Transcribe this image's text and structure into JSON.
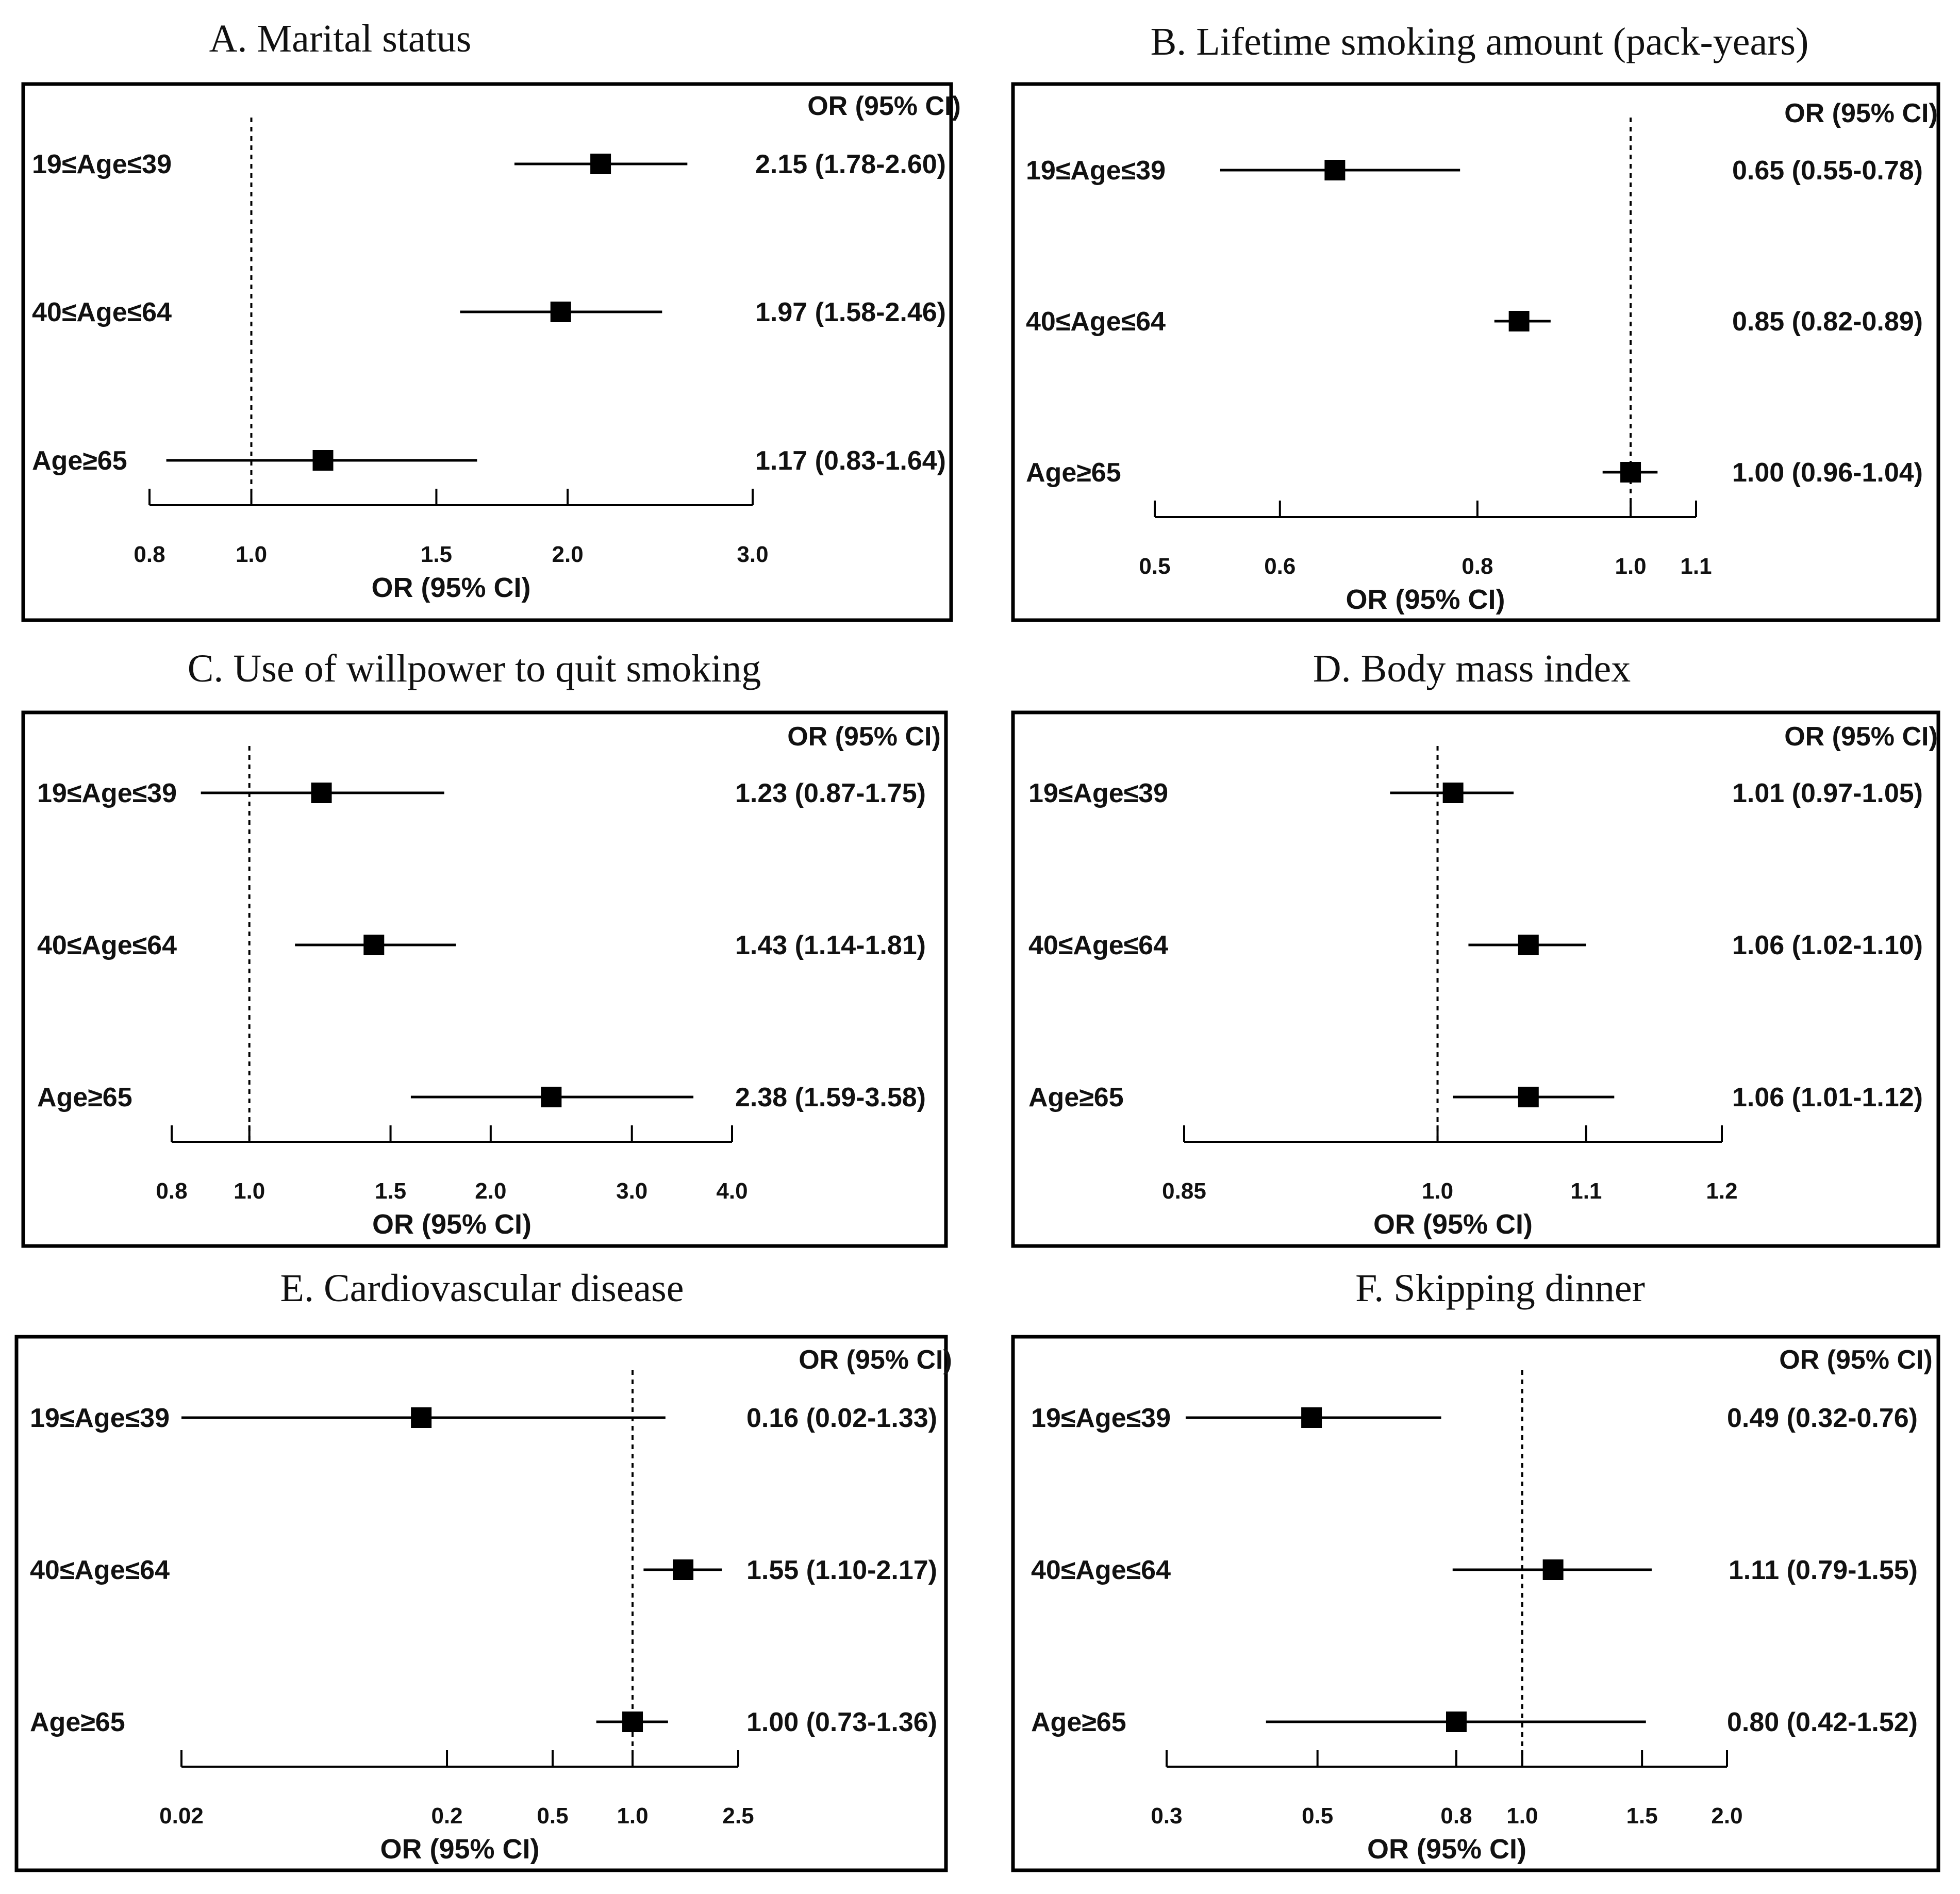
{
  "figure": {
    "ci_header": "OR (95% CI)",
    "axis_title": "OR (95% CI)"
  },
  "chart_data": [
    {
      "type": "forest",
      "title": "A. Marital status",
      "xlabel": "OR (95% CI)",
      "xscale": "log",
      "xlim": [
        0.8,
        3.0
      ],
      "ticks": [
        0.8,
        1.0,
        1.5,
        2.0,
        3.0
      ],
      "tick_labels": [
        "0.8",
        "1.0",
        "1.5",
        "2.0",
        "3.0"
      ],
      "reference": 1.0,
      "rows": [
        {
          "label": "19≤Age≤39",
          "or": 2.15,
          "lo": 1.78,
          "hi": 2.6,
          "text": "2.15 (1.78-2.60)"
        },
        {
          "label": "40≤Age≤64",
          "or": 1.97,
          "lo": 1.58,
          "hi": 2.46,
          "text": "1.97 (1.58-2.46)"
        },
        {
          "label": "Age≥65",
          "or": 1.17,
          "lo": 0.83,
          "hi": 1.64,
          "text": "1.17 (0.83-1.64)"
        }
      ]
    },
    {
      "type": "forest",
      "title": "B. Lifetime smoking amount (pack-years)",
      "xlabel": "OR (95% CI)",
      "xscale": "log",
      "xlim": [
        0.5,
        1.1
      ],
      "ticks": [
        0.5,
        0.6,
        0.8,
        1.0,
        1.1
      ],
      "tick_labels": [
        "0.5",
        "0.6",
        "0.8",
        "1.0",
        "1.1"
      ],
      "reference": 1.0,
      "rows": [
        {
          "label": "19≤Age≤39",
          "or": 0.65,
          "lo": 0.55,
          "hi": 0.78,
          "text": "0.65 (0.55-0.78)"
        },
        {
          "label": "40≤Age≤64",
          "or": 0.85,
          "lo": 0.82,
          "hi": 0.89,
          "text": "0.85 (0.82-0.89)"
        },
        {
          "label": "Age≥65",
          "or": 1.0,
          "lo": 0.96,
          "hi": 1.04,
          "text": "1.00 (0.96-1.04)"
        }
      ]
    },
    {
      "type": "forest",
      "title": "C. Use of willpower to quit smoking",
      "xlabel": "OR (95% CI)",
      "xscale": "log",
      "xlim": [
        0.8,
        4.0
      ],
      "ticks": [
        0.8,
        1.0,
        1.5,
        2.0,
        3.0,
        4.0
      ],
      "tick_labels": [
        "0.8",
        "1.0",
        "1.5",
        "2.0",
        "3.0",
        "4.0"
      ],
      "reference": 1.0,
      "rows": [
        {
          "label": "19≤Age≤39",
          "or": 1.23,
          "lo": 0.87,
          "hi": 1.75,
          "text": "1.23 (0.87-1.75)"
        },
        {
          "label": "40≤Age≤64",
          "or": 1.43,
          "lo": 1.14,
          "hi": 1.81,
          "text": "1.43 (1.14-1.81)"
        },
        {
          "label": "Age≥65",
          "or": 2.38,
          "lo": 1.59,
          "hi": 3.58,
          "text": "2.38 (1.59-3.58)"
        }
      ]
    },
    {
      "type": "forest",
      "title": "D. Body mass index",
      "xlabel": "OR (95% CI)",
      "xscale": "log",
      "xlim": [
        0.85,
        1.2
      ],
      "ticks": [
        0.85,
        1.0,
        1.1,
        1.2
      ],
      "tick_labels": [
        "0.85",
        "1.0",
        "1.1",
        "1.2"
      ],
      "reference": 1.0,
      "rows": [
        {
          "label": "19≤Age≤39",
          "or": 1.01,
          "lo": 0.97,
          "hi": 1.05,
          "text": "1.01 (0.97-1.05)"
        },
        {
          "label": "40≤Age≤64",
          "or": 1.06,
          "lo": 1.02,
          "hi": 1.1,
          "text": "1.06 (1.02-1.10)"
        },
        {
          "label": "Age≥65",
          "or": 1.06,
          "lo": 1.01,
          "hi": 1.12,
          "text": "1.06 (1.01-1.12)"
        }
      ]
    },
    {
      "type": "forest",
      "title": "E. Cardiovascular disease",
      "xlabel": "OR (95% CI)",
      "xscale": "log",
      "xlim": [
        0.02,
        2.5
      ],
      "ticks": [
        0.02,
        0.2,
        0.5,
        1.0,
        2.5
      ],
      "tick_labels": [
        "0.02",
        "0.2",
        "0.5",
        "1.0",
        "2.5"
      ],
      "reference": 1.0,
      "rows": [
        {
          "label": "19≤Age≤39",
          "or": 0.16,
          "lo": 0.02,
          "hi": 1.33,
          "text": "0.16 (0.02-1.33)"
        },
        {
          "label": "40≤Age≤64",
          "or": 1.55,
          "lo": 1.1,
          "hi": 2.17,
          "text": "1.55 (1.10-2.17)"
        },
        {
          "label": "Age≥65",
          "or": 1.0,
          "lo": 0.73,
          "hi": 1.36,
          "text": "1.00 (0.73-1.36)"
        }
      ]
    },
    {
      "type": "forest",
      "title": "F. Skipping dinner",
      "xlabel": "OR (95% CI)",
      "xscale": "log",
      "xlim": [
        0.3,
        2.0
      ],
      "ticks": [
        0.3,
        0.5,
        0.8,
        1.0,
        1.5,
        2.0
      ],
      "tick_labels": [
        "0.3",
        "0.5",
        "0.8",
        "1.0",
        "1.5",
        "2.0"
      ],
      "reference": 1.0,
      "rows": [
        {
          "label": "19≤Age≤39",
          "or": 0.49,
          "lo": 0.32,
          "hi": 0.76,
          "text": "0.49 (0.32-0.76)"
        },
        {
          "label": "40≤Age≤64",
          "or": 1.11,
          "lo": 0.79,
          "hi": 1.55,
          "text": "1.11 (0.79-1.55)"
        },
        {
          "label": "Age≥65",
          "or": 0.8,
          "lo": 0.42,
          "hi": 1.52,
          "text": "0.80 (0.42-1.52)"
        }
      ]
    }
  ]
}
